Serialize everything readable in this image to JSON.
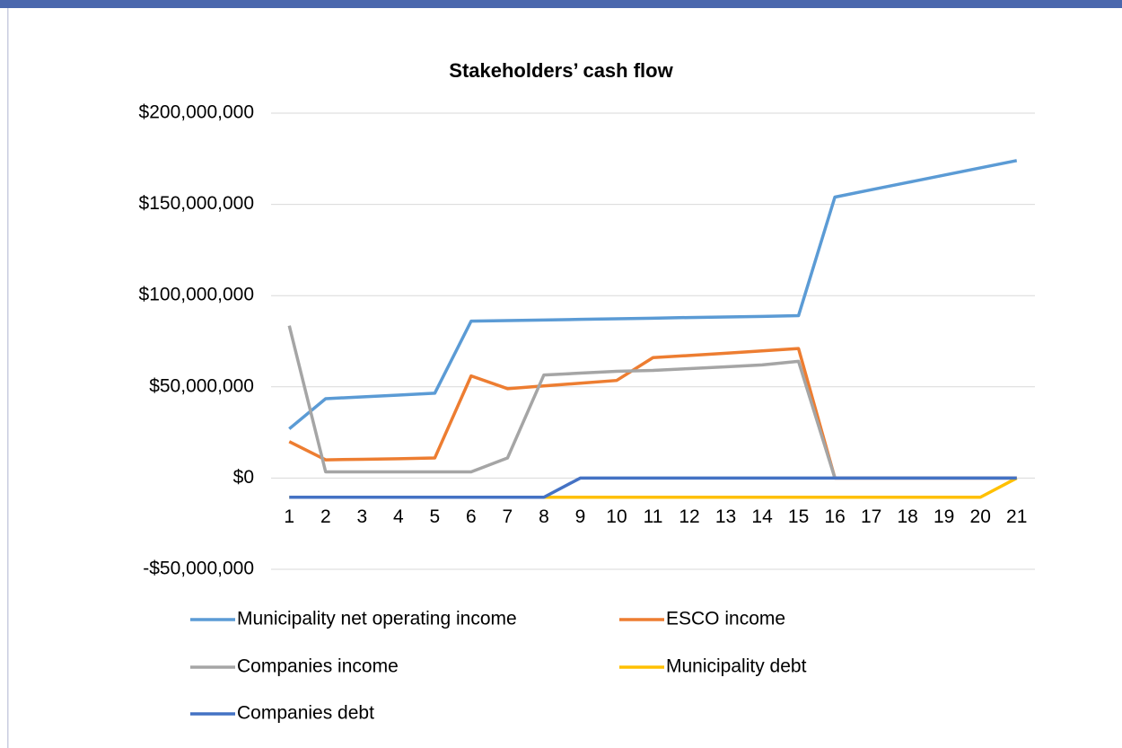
{
  "chart_data": {
    "type": "line",
    "title": "Stakeholders’ cash flow",
    "categories": [
      "1",
      "2",
      "3",
      "4",
      "5",
      "6",
      "7",
      "8",
      "9",
      "10",
      "11",
      "12",
      "13",
      "14",
      "15",
      "16",
      "17",
      "18",
      "19",
      "20",
      "21"
    ],
    "ylim": [
      -50000000,
      200000000
    ],
    "yticks": [
      {
        "value": -50000000,
        "label": "-$50,000,000"
      },
      {
        "value": 0,
        "label": "$0"
      },
      {
        "value": 50000000,
        "label": "$50,000,000"
      },
      {
        "value": 100000000,
        "label": "$100,000,000"
      },
      {
        "value": 150000000,
        "label": "$150,000,000"
      },
      {
        "value": 200000000,
        "label": "$200,000,000"
      }
    ],
    "grid": true,
    "legend": "bottom",
    "series": [
      {
        "name": "Municipality net operating income",
        "color": "#5b9bd5",
        "values": [
          27000000,
          43500000,
          44500000,
          45500000,
          46500000,
          86000000,
          86300000,
          86600000,
          87000000,
          87300000,
          87600000,
          88000000,
          88300000,
          88600000,
          89000000,
          154000000,
          158000000,
          162000000,
          166000000,
          170000000,
          174000000
        ]
      },
      {
        "name": "ESCO income",
        "color": "#ed7d31",
        "values": [
          20000000,
          10000000,
          10300000,
          10600000,
          11000000,
          56000000,
          49000000,
          50500000,
          52000000,
          53500000,
          66000000,
          67200000,
          68400000,
          69700000,
          71000000,
          0,
          0,
          0,
          0,
          0,
          0
        ]
      },
      {
        "name": "Companies income",
        "color": "#a5a5a5",
        "values": [
          83500000,
          3400000,
          3400000,
          3400000,
          3400000,
          3400000,
          11000000,
          56500000,
          57500000,
          58500000,
          59000000,
          60000000,
          61000000,
          62000000,
          64000000,
          0,
          0,
          0,
          0,
          0,
          0
        ]
      },
      {
        "name": "Municipality debt",
        "color": "#ffc000",
        "values": [
          -10500000,
          -10500000,
          -10500000,
          -10500000,
          -10500000,
          -10500000,
          -10500000,
          -10500000,
          -10500000,
          -10500000,
          -10500000,
          -10500000,
          -10500000,
          -10500000,
          -10500000,
          -10500000,
          -10500000,
          -10500000,
          -10500000,
          -10500000,
          0
        ]
      },
      {
        "name": "Companies debt",
        "color": "#4472c4",
        "values": [
          -10500000,
          -10500000,
          -10500000,
          -10500000,
          -10500000,
          -10500000,
          -10500000,
          -10500000,
          0,
          0,
          0,
          0,
          0,
          0,
          0,
          0,
          0,
          0,
          0,
          0,
          0
        ]
      }
    ]
  }
}
